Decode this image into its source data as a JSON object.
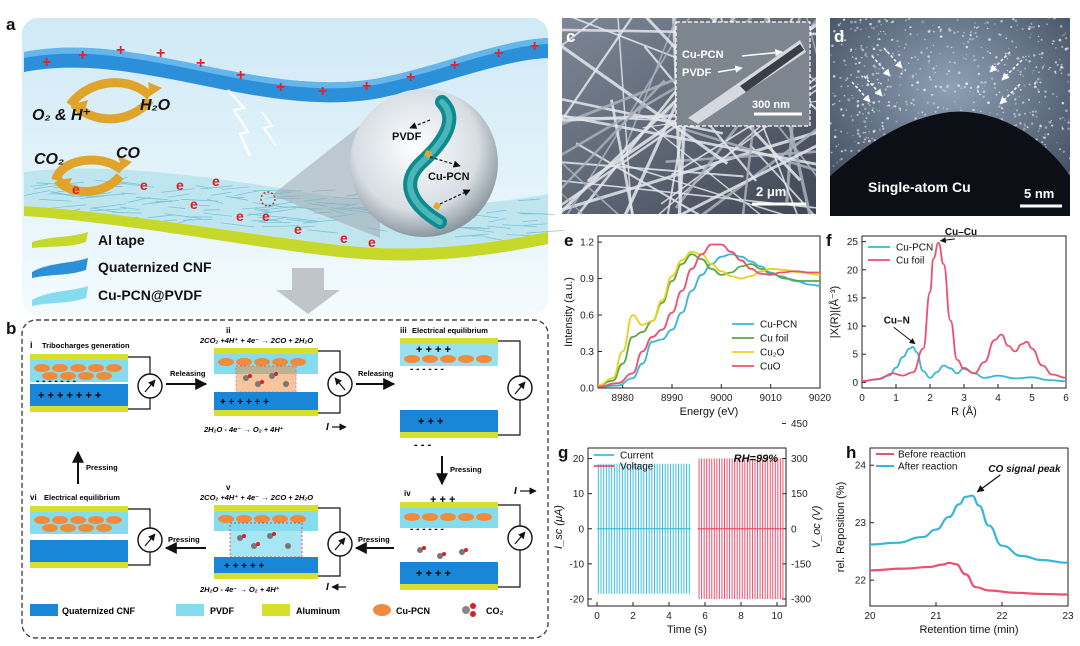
{
  "panel_labels": {
    "a": "a",
    "b": "b",
    "c": "c",
    "d": "d",
    "e": "e",
    "f": "f",
    "g": "g",
    "h": "h"
  },
  "panel_a": {
    "o2_h": "O₂ & H⁺",
    "h2o": "H₂O",
    "co2": "CO₂",
    "co": "CO",
    "electron": "e",
    "plus": "+",
    "pvdf": "PVDF",
    "cu_pcn": "Cu-PCN",
    "legend": [
      "Al tape",
      "Quaternized CNF",
      "Cu-PCN@PVDF"
    ]
  },
  "panel_b": {
    "states": {
      "i": {
        "num": "i",
        "title": "Tribocharges generation"
      },
      "ii": {
        "num": "ii",
        "eq_top": "2CO₂ +4H⁺ + 4e⁻ → 2CO + 2H₂O",
        "eq_bottom": "2H₂O - 4e⁻ → O₂ + 4H⁺"
      },
      "iii": {
        "num": "iii",
        "title": "Electrical equilibrium"
      },
      "iv": {
        "num": "iv"
      },
      "v": {
        "num": "v",
        "eq_top": "2CO₂ +4H⁺ + 4e⁻ → 2CO + 2H₂O",
        "eq_bottom": "2H₂O - 4e⁻ → O₂ + 4H⁺"
      },
      "vi": {
        "num": "vi",
        "title": "Electrical equilibrium"
      }
    },
    "arrows": {
      "releasing": "Releasing",
      "pressing": "Pressing"
    },
    "current": "I",
    "legend": [
      "Quaternized CNF",
      "PVDF",
      "Aluminum",
      "Cu-PCN",
      "CO₂"
    ],
    "colors": {
      "cnf": "#1a86d8",
      "pvdf": "#86dcef",
      "aluminum": "#d6e02c",
      "cu_pcn": "#f08a3c"
    }
  },
  "panel_c": {
    "inset_cu_pcn": "Cu-PCN",
    "inset_pvdf": "PVDF",
    "inset_scale": "300 nm",
    "scale": "2 μm"
  },
  "panel_d": {
    "caption": "Single-atom Cu",
    "scale": "5 nm"
  },
  "chart_data": [
    {
      "panel": "e",
      "type": "line",
      "xlabel": "Energy (eV)",
      "ylabel": "Intensity (a.u.)",
      "xlim": [
        8975,
        9020
      ],
      "ylim": [
        0,
        1.25
      ],
      "xticks": [
        8980,
        8990,
        9000,
        9010,
        9020
      ],
      "yticks": [
        0.0,
        0.3,
        0.6,
        0.9,
        1.2
      ],
      "ytick_labels": [
        "0.0",
        "0.3",
        "0.6",
        "0.9",
        "1.2"
      ],
      "legend_position": "bottom-right",
      "series": [
        {
          "name": "Cu-PCN",
          "color": "#38b6d8",
          "x": [
            8975,
            8979,
            8982,
            8984,
            8986,
            8988,
            8990,
            8992,
            8994,
            8996,
            8998,
            9000,
            9002,
            9004,
            9006,
            9008,
            9010,
            9012,
            9015,
            9018,
            9020
          ],
          "y": [
            0.01,
            0.02,
            0.08,
            0.2,
            0.38,
            0.4,
            0.48,
            0.62,
            0.8,
            0.93,
            1.02,
            1.08,
            1.1,
            1.08,
            1.04,
            1.0,
            0.95,
            0.92,
            0.88,
            0.85,
            0.84
          ]
        },
        {
          "name": "Cu foil",
          "color": "#5aa845",
          "x": [
            8975,
            8978,
            8980,
            8982,
            8984,
            8986,
            8988,
            8990,
            8992,
            8994,
            8996,
            8998,
            9000,
            9002,
            9004,
            9006,
            9008,
            9010,
            9013,
            9016,
            9020
          ],
          "y": [
            0.02,
            0.06,
            0.2,
            0.42,
            0.46,
            0.55,
            0.7,
            0.88,
            1.02,
            1.1,
            1.06,
            0.98,
            0.93,
            0.95,
            1.0,
            1.02,
            0.98,
            0.94,
            0.9,
            0.88,
            0.88
          ]
        },
        {
          "name": "Cu₂O",
          "color": "#e6d21c",
          "x": [
            8975,
            8978,
            8980,
            8982,
            8984,
            8986,
            8988,
            8990,
            8992,
            8994,
            8996,
            8998,
            9000,
            9002,
            9004,
            9006,
            9008,
            9010,
            9013,
            9016,
            9020
          ],
          "y": [
            0.02,
            0.08,
            0.3,
            0.6,
            0.52,
            0.55,
            0.72,
            0.92,
            1.05,
            1.12,
            1.1,
            1.02,
            0.96,
            0.92,
            0.9,
            0.92,
            0.96,
            0.98,
            0.97,
            0.95,
            0.93
          ]
        },
        {
          "name": "CuO",
          "color": "#ee4f6e",
          "x": [
            8975,
            8979,
            8982,
            8984,
            8986,
            8988,
            8990,
            8992,
            8994,
            8996,
            8998,
            9000,
            9002,
            9004,
            9006,
            9008,
            9010,
            9012,
            9015,
            9018,
            9020
          ],
          "y": [
            0.01,
            0.04,
            0.12,
            0.3,
            0.42,
            0.48,
            0.62,
            0.8,
            0.98,
            1.1,
            1.18,
            1.18,
            1.12,
            1.05,
            0.98,
            0.94,
            0.93,
            0.95,
            0.96,
            0.95,
            0.95
          ]
        }
      ]
    },
    {
      "panel": "f",
      "type": "line",
      "xlabel": "R (Å)",
      "ylabel": "|X(R)|(Å⁻³)",
      "xlim": [
        0,
        6
      ],
      "ylim": [
        -1,
        26
      ],
      "xticks": [
        0,
        1,
        2,
        3,
        4,
        5,
        6
      ],
      "yticks": [
        0,
        5,
        10,
        15,
        20,
        25
      ],
      "legend_position": "top-left",
      "annotations": [
        {
          "text": "Cu–Cu",
          "x": 2.25,
          "y": 24.8,
          "text_x": 2.85,
          "text_y": 26.2
        },
        {
          "text": "Cu–N",
          "x": 1.5,
          "y": 6.5,
          "text_x": 1.05,
          "text_y": 10.5
        }
      ],
      "series": [
        {
          "name": "Cu-PCN",
          "color": "#38b6d8",
          "x": [
            0,
            0.4,
            0.8,
            1.0,
            1.2,
            1.4,
            1.5,
            1.6,
            1.8,
            2.0,
            2.2,
            2.4,
            2.6,
            2.8,
            3.0,
            3.3,
            3.6,
            4.0,
            4.5,
            5.0,
            5.5,
            6.0
          ],
          "y": [
            0.2,
            0.5,
            1.2,
            2.6,
            4.5,
            6.0,
            6.3,
            5.4,
            2.0,
            0.8,
            1.8,
            3.0,
            2.5,
            1.6,
            2.6,
            1.6,
            0.8,
            1.2,
            0.7,
            0.9,
            0.4,
            0.2
          ]
        },
        {
          "name": "Cu foil",
          "color": "#ee4f6e",
          "x": [
            0,
            0.5,
            0.9,
            1.2,
            1.5,
            1.8,
            2.0,
            2.1,
            2.25,
            2.4,
            2.6,
            2.8,
            3.0,
            3.3,
            3.6,
            3.9,
            4.1,
            4.3,
            4.5,
            4.7,
            4.85,
            5.0,
            5.3,
            5.6,
            6.0
          ],
          "y": [
            0.2,
            0.6,
            1.6,
            1.2,
            1.8,
            6.0,
            16.0,
            22.0,
            24.8,
            21.0,
            11.0,
            4.0,
            2.4,
            1.6,
            3.6,
            7.5,
            8.5,
            6.5,
            5.5,
            6.8,
            7.2,
            6.0,
            3.0,
            1.4,
            0.8
          ]
        }
      ]
    },
    {
      "panel": "g",
      "type": "line",
      "xlabel": "Time (s)",
      "ylabel": "I_sc (μA)",
      "ylabel_right": "V_oc (V)",
      "xlim": [
        -0.5,
        10.5
      ],
      "ylim": [
        -22,
        23
      ],
      "ylim_right": [
        -330,
        345
      ],
      "xticks": [
        0,
        2,
        4,
        6,
        8,
        10
      ],
      "yticks": [
        -20,
        -10,
        0,
        10,
        20
      ],
      "yticks_right": [
        -300,
        -150,
        0,
        150,
        300,
        450
      ],
      "annotation": "RH=99%",
      "legend_position": "top-left",
      "series": [
        {
          "name": "Current",
          "color": "#38bfe0",
          "t_start": 0.0,
          "t_end": 5.2,
          "pulses": 35,
          "peak": 18.5,
          "trough": -18.5
        },
        {
          "name": "Voltage",
          "color": "#ee4f6e",
          "t_start": 5.6,
          "t_end": 10.4,
          "pulses": 34,
          "peak_v": 300,
          "trough_v": -300
        }
      ]
    },
    {
      "panel": "h",
      "type": "line",
      "xlabel": "Retention time (min)",
      "ylabel": "rel. Reposition (%)",
      "xlim": [
        20,
        23
      ],
      "ylim": [
        21.55,
        24.3
      ],
      "xticks": [
        20,
        21,
        22,
        23
      ],
      "yticks": [
        22,
        23,
        24
      ],
      "annotation": "CO signal peak",
      "annotation_point": {
        "x": 21.55,
        "y": 23.45
      },
      "legend_position": "top-left",
      "series": [
        {
          "name": "Before reaction",
          "color": "#ee4f6e",
          "x": [
            20.0,
            20.5,
            20.9,
            21.1,
            21.2,
            21.3,
            21.45,
            21.6,
            21.8,
            22.2,
            22.6,
            23.0
          ],
          "y": [
            22.17,
            22.2,
            22.23,
            22.27,
            22.3,
            22.28,
            22.1,
            21.88,
            21.82,
            21.78,
            21.76,
            21.75
          ]
        },
        {
          "name": "After reaction",
          "color": "#38b6d8",
          "x": [
            20.0,
            20.4,
            20.8,
            21.0,
            21.2,
            21.35,
            21.45,
            21.55,
            21.65,
            21.8,
            22.0,
            22.3,
            22.6,
            23.0
          ],
          "y": [
            22.62,
            22.65,
            22.75,
            22.88,
            23.1,
            23.32,
            23.45,
            23.47,
            23.3,
            22.95,
            22.6,
            22.42,
            22.35,
            22.3
          ]
        }
      ]
    }
  ]
}
